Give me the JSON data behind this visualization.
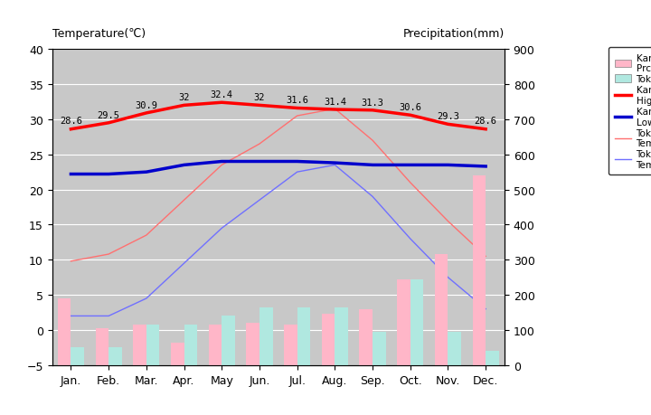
{
  "months": [
    "Jan.",
    "Feb.",
    "Mar.",
    "Apr.",
    "May",
    "Jun.",
    "Jul.",
    "Aug.",
    "Sep.",
    "Oct.",
    "Nov.",
    "Dec."
  ],
  "kampung_raja_high": [
    28.6,
    29.5,
    30.9,
    32.0,
    32.4,
    32.0,
    31.6,
    31.4,
    31.3,
    30.6,
    29.3,
    28.6
  ],
  "kampung_raja_low": [
    22.2,
    22.2,
    22.5,
    23.5,
    24.0,
    24.0,
    24.0,
    23.8,
    23.5,
    23.5,
    23.5,
    23.3
  ],
  "tokyo_high": [
    9.8,
    10.8,
    13.5,
    18.5,
    23.5,
    26.5,
    30.5,
    31.5,
    27.0,
    21.0,
    15.5,
    10.5
  ],
  "tokyo_low": [
    2.0,
    2.0,
    4.5,
    9.5,
    14.5,
    18.5,
    22.5,
    23.5,
    19.0,
    13.0,
    7.5,
    3.0
  ],
  "kampung_raja_prcp_mm": [
    190,
    105,
    115,
    65,
    115,
    120,
    115,
    145,
    160,
    245,
    315,
    540
  ],
  "tokyo_prcp_mm": [
    50,
    50,
    115,
    115,
    140,
    165,
    165,
    165,
    95,
    245,
    95,
    40
  ],
  "kampung_raja_high_labels": [
    "28.6",
    "29.5",
    "30.9",
    "32",
    "32.4",
    "32",
    "31.6",
    "31.4",
    "31.3",
    "30.6",
    "29.3",
    "28.6"
  ],
  "temp_ylim": [
    -5,
    40
  ],
  "prcp_ylim": [
    0,
    900
  ],
  "bar_width": 0.35,
  "background_color": "#c8c8c8",
  "kampung_raja_prcp_color": "#ffb6c8",
  "tokyo_prcp_color": "#b0e8e0",
  "kampung_raja_high_color": "#ff0000",
  "kampung_raja_low_color": "#0000cc",
  "tokyo_high_color": "#ff7070",
  "tokyo_low_color": "#7070ff",
  "title_left": "Temperature(℃)",
  "title_right": "Precipitation(mm)"
}
